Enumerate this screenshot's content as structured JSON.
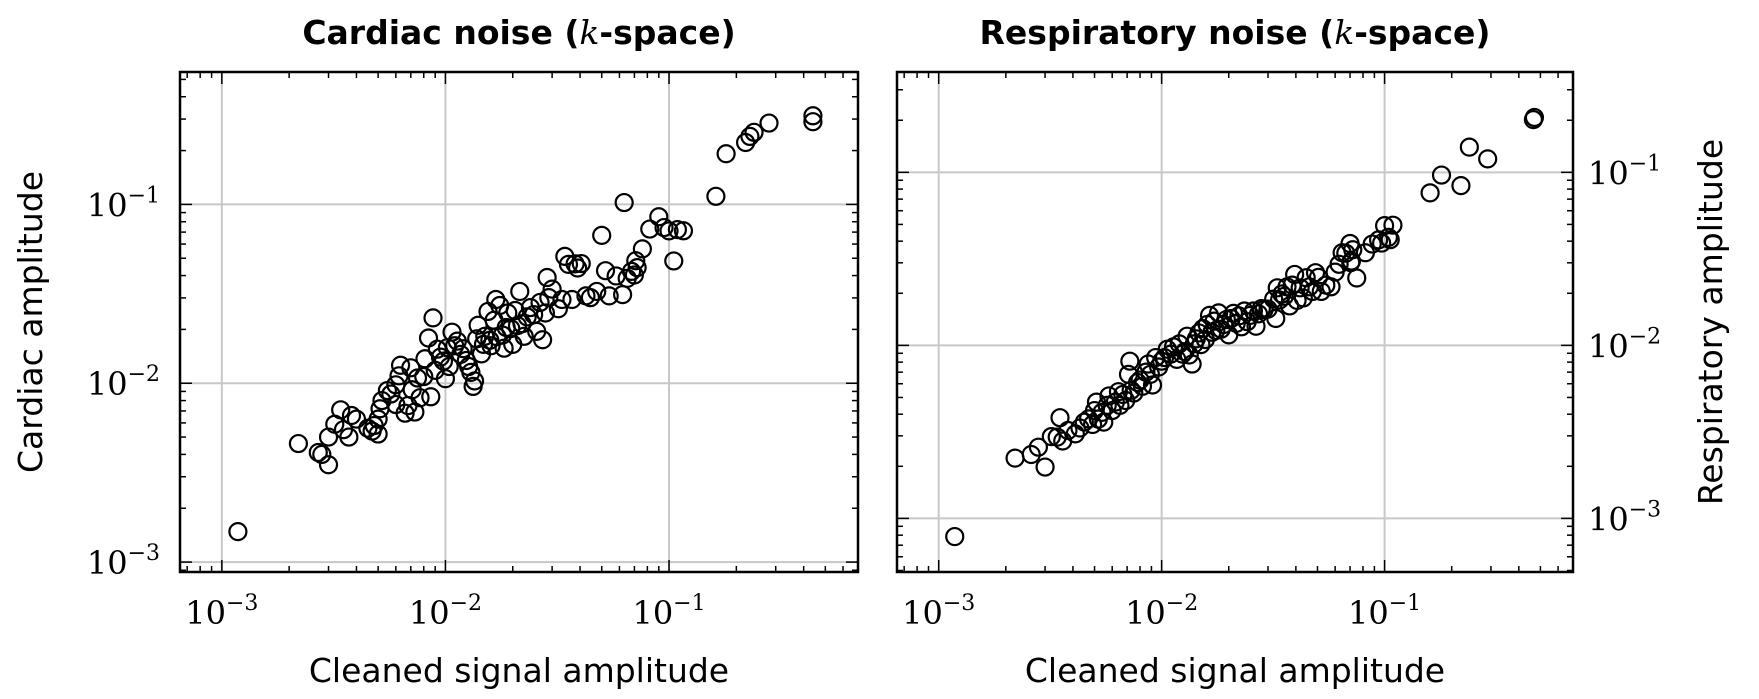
{
  "chart_data": [
    {
      "type": "scatter",
      "title_prefix": "Cardiac noise (",
      "title_k": "k",
      "title_suffix": "-space)",
      "xlabel": "Cleaned signal amplitude",
      "ylabel": "Cardiac amplitude",
      "xscale": "log",
      "yscale": "log",
      "xlim": [
        0.00065,
        0.7
      ],
      "ylim": [
        0.00088,
        0.55
      ],
      "grid": true,
      "xticks": [
        {
          "base": "10",
          "exp": "−3",
          "value": 0.001
        },
        {
          "base": "10",
          "exp": "−2",
          "value": 0.01
        },
        {
          "base": "10",
          "exp": "−1",
          "value": 0.1
        }
      ],
      "yticks": [
        {
          "base": "10",
          "exp": "−3",
          "value": 0.001
        },
        {
          "base": "10",
          "exp": "−2",
          "value": 0.01
        },
        {
          "base": "10",
          "exp": "−1",
          "value": 0.1
        }
      ],
      "ylabel_side": "left",
      "points": [
        [
          0.00118,
          0.00148
        ],
        [
          0.0022,
          0.0046
        ],
        [
          0.0027,
          0.0041
        ],
        [
          0.0028,
          0.004
        ],
        [
          0.003,
          0.0035
        ],
        [
          0.003,
          0.005
        ],
        [
          0.0032,
          0.0059
        ],
        [
          0.0034,
          0.0071
        ],
        [
          0.0035,
          0.0055
        ],
        [
          0.0037,
          0.005
        ],
        [
          0.0038,
          0.0066
        ],
        [
          0.004,
          0.0063
        ],
        [
          0.0045,
          0.0056
        ],
        [
          0.0047,
          0.0054
        ],
        [
          0.0048,
          0.0058
        ],
        [
          0.005,
          0.0052
        ],
        [
          0.005,
          0.0063
        ],
        [
          0.0051,
          0.0072
        ],
        [
          0.0052,
          0.008
        ],
        [
          0.0055,
          0.0091
        ],
        [
          0.0057,
          0.0087
        ],
        [
          0.006,
          0.0098
        ],
        [
          0.006,
          0.0076
        ],
        [
          0.0062,
          0.011
        ],
        [
          0.0063,
          0.0126
        ],
        [
          0.0066,
          0.0068
        ],
        [
          0.0068,
          0.0075
        ],
        [
          0.007,
          0.0122
        ],
        [
          0.0071,
          0.0092
        ],
        [
          0.0073,
          0.0069
        ],
        [
          0.0075,
          0.0107
        ],
        [
          0.0077,
          0.0083
        ],
        [
          0.008,
          0.0109
        ],
        [
          0.0081,
          0.0137
        ],
        [
          0.0084,
          0.0179
        ],
        [
          0.0086,
          0.0084
        ],
        [
          0.0088,
          0.0232
        ],
        [
          0.009,
          0.0118
        ],
        [
          0.0092,
          0.0155
        ],
        [
          0.0095,
          0.014
        ],
        [
          0.0098,
          0.0133
        ],
        [
          0.01,
          0.0106
        ],
        [
          0.0102,
          0.0158
        ],
        [
          0.0104,
          0.0124
        ],
        [
          0.0107,
          0.0193
        ],
        [
          0.011,
          0.0162
        ],
        [
          0.0113,
          0.0172
        ],
        [
          0.0117,
          0.0145
        ],
        [
          0.012,
          0.0156
        ],
        [
          0.0124,
          0.0134
        ],
        [
          0.0127,
          0.0124
        ],
        [
          0.013,
          0.0115
        ],
        [
          0.0133,
          0.0096
        ],
        [
          0.0135,
          0.0103
        ],
        [
          0.0138,
          0.0177
        ],
        [
          0.014,
          0.0211
        ],
        [
          0.0145,
          0.0146
        ],
        [
          0.0148,
          0.0165
        ],
        [
          0.015,
          0.0183
        ],
        [
          0.0155,
          0.0252
        ],
        [
          0.0158,
          0.0174
        ],
        [
          0.016,
          0.0162
        ],
        [
          0.0165,
          0.0225
        ],
        [
          0.0168,
          0.0294
        ],
        [
          0.017,
          0.0182
        ],
        [
          0.0175,
          0.0272
        ],
        [
          0.018,
          0.0186
        ],
        [
          0.0183,
          0.0157
        ],
        [
          0.0187,
          0.0205
        ],
        [
          0.019,
          0.0247
        ],
        [
          0.0196,
          0.0202
        ],
        [
          0.02,
          0.0165
        ],
        [
          0.0205,
          0.0255
        ],
        [
          0.021,
          0.021
        ],
        [
          0.0215,
          0.0326
        ],
        [
          0.022,
          0.0215
        ],
        [
          0.0225,
          0.0183
        ],
        [
          0.0232,
          0.0235
        ],
        [
          0.024,
          0.0265
        ],
        [
          0.0248,
          0.0242
        ],
        [
          0.0256,
          0.0195
        ],
        [
          0.0265,
          0.0283
        ],
        [
          0.0272,
          0.0175
        ],
        [
          0.028,
          0.0247
        ],
        [
          0.0285,
          0.039
        ],
        [
          0.029,
          0.0301
        ],
        [
          0.03,
          0.0336
        ],
        [
          0.032,
          0.0261
        ],
        [
          0.0332,
          0.0294
        ],
        [
          0.0342,
          0.0512
        ],
        [
          0.0355,
          0.0462
        ],
        [
          0.0368,
          0.0294
        ],
        [
          0.038,
          0.0465
        ],
        [
          0.039,
          0.0441
        ],
        [
          0.0405,
          0.0467
        ],
        [
          0.0425,
          0.0308
        ],
        [
          0.0445,
          0.0301
        ],
        [
          0.0475,
          0.0326
        ],
        [
          0.05,
          0.0671
        ],
        [
          0.052,
          0.0426
        ],
        [
          0.054,
          0.0308
        ],
        [
          0.058,
          0.0398
        ],
        [
          0.062,
          0.0313
        ],
        [
          0.063,
          0.1024
        ],
        [
          0.065,
          0.0386
        ],
        [
          0.068,
          0.0422
        ],
        [
          0.07,
          0.0403
        ],
        [
          0.071,
          0.0484
        ],
        [
          0.072,
          0.0443
        ],
        [
          0.076,
          0.0564
        ],
        [
          0.082,
          0.0728
        ],
        [
          0.09,
          0.0853
        ],
        [
          0.095,
          0.0742
        ],
        [
          0.1,
          0.0711
        ],
        [
          0.105,
          0.0483
        ],
        [
          0.109,
          0.0723
        ],
        [
          0.116,
          0.0712
        ],
        [
          0.162,
          0.111
        ],
        [
          0.18,
          0.192
        ],
        [
          0.22,
          0.222
        ],
        [
          0.23,
          0.24
        ],
        [
          0.24,
          0.253
        ],
        [
          0.28,
          0.285
        ],
        [
          0.44,
          0.29
        ],
        [
          0.44,
          0.313
        ]
      ]
    },
    {
      "type": "scatter",
      "title_prefix": "Respiratory noise (",
      "title_k": "k",
      "title_suffix": "-space)",
      "xlabel": "Cleaned signal amplitude",
      "ylabel": "Respiratory amplitude",
      "xscale": "log",
      "yscale": "log",
      "xlim": [
        0.00065,
        0.7
      ],
      "ylim": [
        0.00049,
        0.38
      ],
      "grid": true,
      "xticks": [
        {
          "base": "10",
          "exp": "−3",
          "value": 0.001
        },
        {
          "base": "10",
          "exp": "−2",
          "value": 0.01
        },
        {
          "base": "10",
          "exp": "−1",
          "value": 0.1
        }
      ],
      "yticks": [
        {
          "base": "10",
          "exp": "−3",
          "value": 0.001
        },
        {
          "base": "10",
          "exp": "−2",
          "value": 0.01
        },
        {
          "base": "10",
          "exp": "−1",
          "value": 0.1
        }
      ],
      "ylabel_side": "right",
      "points": [
        [
          0.00118,
          0.000785
        ],
        [
          0.0022,
          0.00223
        ],
        [
          0.0026,
          0.00234
        ],
        [
          0.0028,
          0.00258
        ],
        [
          0.003,
          0.00198
        ],
        [
          0.0032,
          0.00297
        ],
        [
          0.0034,
          0.00295
        ],
        [
          0.0035,
          0.00382
        ],
        [
          0.0036,
          0.0028
        ],
        [
          0.0038,
          0.00322
        ],
        [
          0.0041,
          0.00308
        ],
        [
          0.0043,
          0.00333
        ],
        [
          0.0045,
          0.0036
        ],
        [
          0.0047,
          0.00376
        ],
        [
          0.0049,
          0.00349
        ],
        [
          0.005,
          0.0042
        ],
        [
          0.0051,
          0.0047
        ],
        [
          0.0052,
          0.00375
        ],
        [
          0.0054,
          0.0041
        ],
        [
          0.0055,
          0.0036
        ],
        [
          0.0057,
          0.0045
        ],
        [
          0.0058,
          0.0051
        ],
        [
          0.006,
          0.0042
        ],
        [
          0.0062,
          0.0047
        ],
        [
          0.0064,
          0.0054
        ],
        [
          0.0065,
          0.0045
        ],
        [
          0.0067,
          0.0052
        ],
        [
          0.0069,
          0.0048
        ],
        [
          0.0071,
          0.0068
        ],
        [
          0.0072,
          0.0081
        ],
        [
          0.0073,
          0.0055
        ],
        [
          0.0075,
          0.0053
        ],
        [
          0.0078,
          0.0061
        ],
        [
          0.008,
          0.0063
        ],
        [
          0.0082,
          0.0058
        ],
        [
          0.0085,
          0.007
        ],
        [
          0.0087,
          0.0078
        ],
        [
          0.0089,
          0.0068
        ],
        [
          0.0091,
          0.0059
        ],
        [
          0.0094,
          0.0085
        ],
        [
          0.0097,
          0.0075
        ],
        [
          0.01,
          0.0081
        ],
        [
          0.0103,
          0.0085
        ],
        [
          0.0106,
          0.0095
        ],
        [
          0.011,
          0.0089
        ],
        [
          0.0113,
          0.0098
        ],
        [
          0.0117,
          0.0083
        ],
        [
          0.012,
          0.0102
        ],
        [
          0.0124,
          0.0089
        ],
        [
          0.0127,
          0.0092
        ],
        [
          0.013,
          0.0113
        ],
        [
          0.0133,
          0.0088
        ],
        [
          0.0137,
          0.0078
        ],
        [
          0.014,
          0.0102
        ],
        [
          0.0143,
          0.0109
        ],
        [
          0.0147,
          0.0118
        ],
        [
          0.015,
          0.0101
        ],
        [
          0.0153,
          0.0125
        ],
        [
          0.0157,
          0.0108
        ],
        [
          0.016,
          0.0132
        ],
        [
          0.0164,
          0.0149
        ],
        [
          0.0168,
          0.0119
        ],
        [
          0.0172,
          0.0138
        ],
        [
          0.0175,
          0.0122
        ],
        [
          0.018,
          0.0154
        ],
        [
          0.0185,
          0.0124
        ],
        [
          0.019,
          0.0132
        ],
        [
          0.0195,
          0.0141
        ],
        [
          0.02,
          0.0115
        ],
        [
          0.0205,
          0.0143
        ],
        [
          0.021,
          0.0153
        ],
        [
          0.0216,
          0.0134
        ],
        [
          0.0222,
          0.0148
        ],
        [
          0.0228,
          0.0128
        ],
        [
          0.0235,
          0.0158
        ],
        [
          0.0242,
          0.0137
        ],
        [
          0.025,
          0.0149
        ],
        [
          0.0258,
          0.0158
        ],
        [
          0.0265,
          0.0129
        ],
        [
          0.0272,
          0.0152
        ],
        [
          0.028,
          0.0163
        ],
        [
          0.0288,
          0.0161
        ],
        [
          0.03,
          0.0162
        ],
        [
          0.0318,
          0.0185
        ],
        [
          0.0325,
          0.0143
        ],
        [
          0.033,
          0.0215
        ],
        [
          0.0338,
          0.0183
        ],
        [
          0.0346,
          0.0198
        ],
        [
          0.0355,
          0.0192
        ],
        [
          0.0365,
          0.0218
        ],
        [
          0.0375,
          0.0169
        ],
        [
          0.0385,
          0.0223
        ],
        [
          0.0395,
          0.0257
        ],
        [
          0.0405,
          0.0182
        ],
        [
          0.0418,
          0.0215
        ],
        [
          0.0432,
          0.0188
        ],
        [
          0.0445,
          0.0246
        ],
        [
          0.046,
          0.0218
        ],
        [
          0.0475,
          0.0205
        ],
        [
          0.049,
          0.0263
        ],
        [
          0.0505,
          0.0247
        ],
        [
          0.052,
          0.0205
        ],
        [
          0.0545,
          0.0223
        ],
        [
          0.0575,
          0.0218
        ],
        [
          0.06,
          0.0265
        ],
        [
          0.0625,
          0.0294
        ],
        [
          0.0645,
          0.0343
        ],
        [
          0.067,
          0.0341
        ],
        [
          0.07,
          0.0388
        ],
        [
          0.0705,
          0.0301
        ],
        [
          0.071,
          0.0307
        ],
        [
          0.072,
          0.0357
        ],
        [
          0.075,
          0.0245
        ],
        [
          0.082,
          0.0343
        ],
        [
          0.088,
          0.0385
        ],
        [
          0.094,
          0.0407
        ],
        [
          0.097,
          0.039
        ],
        [
          0.1,
          0.0492
        ],
        [
          0.104,
          0.0421
        ],
        [
          0.106,
          0.0408
        ],
        [
          0.109,
          0.0495
        ],
        [
          0.16,
          0.0761
        ],
        [
          0.18,
          0.0964
        ],
        [
          0.22,
          0.0838
        ],
        [
          0.24,
          0.1398
        ],
        [
          0.29,
          0.1196
        ],
        [
          0.465,
          0.2017
        ],
        [
          0.47,
          0.2076
        ]
      ]
    }
  ]
}
